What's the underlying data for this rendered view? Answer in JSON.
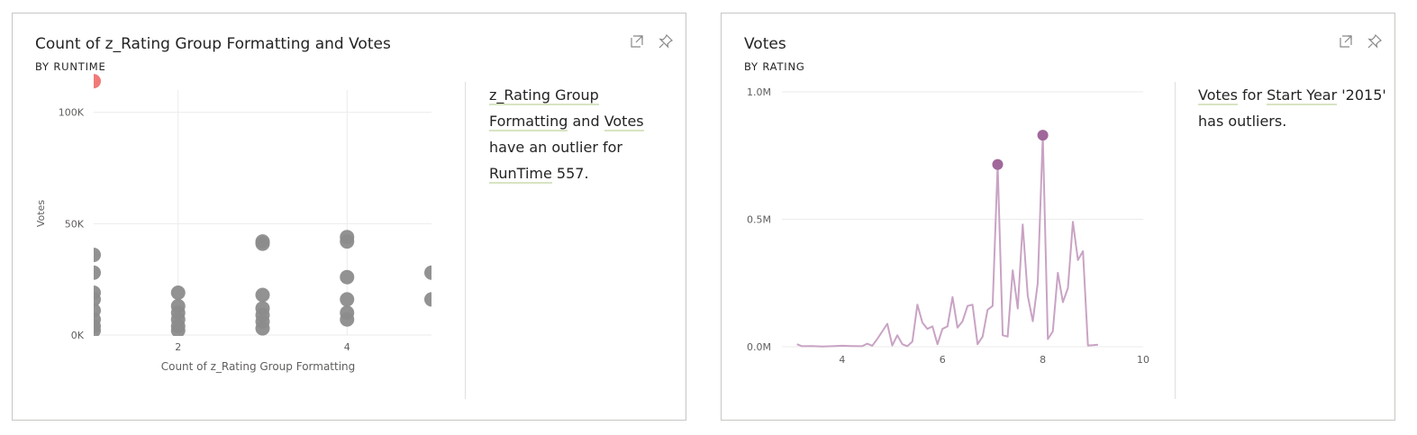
{
  "cards": [
    {
      "title": "Count of z_Rating Group Formatting and Votes",
      "subtitle": "BY RUNTIME",
      "narrative": {
        "t1": "z_Rating Group",
        "t2": "Formatting",
        "t3": " and ",
        "t4": "Votes",
        "t5": "have an outlier for",
        "t6": "RunTime",
        "t7": " 557."
      }
    },
    {
      "title": "Votes",
      "subtitle": "BY RATING",
      "narrative": {
        "t1": "Votes",
        "t2": " for ",
        "t3": "Start Year",
        "t4": " '2015'",
        "t5": "has outliers."
      }
    }
  ],
  "icons": {
    "expand": "expand-icon",
    "pin": "pin-icon"
  },
  "colors": {
    "scatter_point": "#8c8c8c",
    "outlier_point": "#f07a7a",
    "line": "#c9a3c4",
    "line_marker": "#a0679a",
    "grid": "#ebebeb",
    "underline": "#d7e4c2"
  },
  "chart_data": [
    {
      "type": "scatter",
      "title": "Count of z_Rating Group Formatting and Votes",
      "subtitle": "BY RUNTIME",
      "xlabel": "Count of z_Rating Group Formatting",
      "ylabel": "Votes",
      "xlim": [
        1,
        5
      ],
      "ylim": [
        0,
        110000
      ],
      "xticks": [
        "2",
        "4"
      ],
      "yticks": [
        "0K",
        "50K",
        "100K"
      ],
      "grid": true,
      "points": [
        {
          "x": 1,
          "y": 114000,
          "outlier": true
        },
        {
          "x": 1,
          "y": 36000
        },
        {
          "x": 1,
          "y": 28000
        },
        {
          "x": 1,
          "y": 19000
        },
        {
          "x": 1,
          "y": 16000
        },
        {
          "x": 1,
          "y": 11000
        },
        {
          "x": 1,
          "y": 7000
        },
        {
          "x": 1,
          "y": 4000
        },
        {
          "x": 1,
          "y": 2000
        },
        {
          "x": 2,
          "y": 19000
        },
        {
          "x": 2,
          "y": 13000
        },
        {
          "x": 2,
          "y": 10000
        },
        {
          "x": 2,
          "y": 7000
        },
        {
          "x": 2,
          "y": 4000
        },
        {
          "x": 2,
          "y": 2000
        },
        {
          "x": 3,
          "y": 42000
        },
        {
          "x": 3,
          "y": 41000
        },
        {
          "x": 3,
          "y": 18000
        },
        {
          "x": 3,
          "y": 12000
        },
        {
          "x": 3,
          "y": 9000
        },
        {
          "x": 3,
          "y": 6000
        },
        {
          "x": 3,
          "y": 3000
        },
        {
          "x": 4,
          "y": 44000
        },
        {
          "x": 4,
          "y": 42000
        },
        {
          "x": 4,
          "y": 26000
        },
        {
          "x": 4,
          "y": 16000
        },
        {
          "x": 4,
          "y": 10000
        },
        {
          "x": 4,
          "y": 7000
        },
        {
          "x": 5,
          "y": 28000
        },
        {
          "x": 5,
          "y": 16000
        }
      ]
    },
    {
      "type": "line",
      "title": "Votes",
      "subtitle": "BY RATING",
      "xlabel": "",
      "ylabel": "",
      "xlim": [
        2.8,
        10
      ],
      "ylim": [
        0,
        1000000
      ],
      "xticks": [
        "4",
        "6",
        "8",
        "10"
      ],
      "yticks": [
        "0.0M",
        "0.5M",
        "1.0M"
      ],
      "grid": true,
      "x": [
        3.1,
        3.2,
        3.4,
        3.6,
        3.8,
        4.0,
        4.2,
        4.4,
        4.5,
        4.6,
        4.7,
        4.8,
        4.9,
        5.0,
        5.1,
        5.2,
        5.3,
        5.4,
        5.5,
        5.6,
        5.7,
        5.8,
        5.9,
        6.0,
        6.1,
        6.2,
        6.3,
        6.4,
        6.5,
        6.6,
        6.7,
        6.8,
        6.9,
        7.0,
        7.1,
        7.2,
        7.3,
        7.4,
        7.5,
        7.6,
        7.7,
        7.8,
        7.9,
        8.0,
        8.1,
        8.2,
        8.3,
        8.4,
        8.5,
        8.6,
        8.7,
        8.8,
        8.9,
        9.0,
        9.1
      ],
      "values": [
        10000,
        2000,
        3000,
        1000,
        2000,
        4000,
        3000,
        2000,
        12000,
        4000,
        30000,
        60000,
        90000,
        5000,
        45000,
        10000,
        2000,
        20000,
        165000,
        95000,
        70000,
        80000,
        10000,
        70000,
        80000,
        195000,
        75000,
        100000,
        160000,
        165000,
        10000,
        40000,
        145000,
        160000,
        715000,
        45000,
        40000,
        300000,
        150000,
        480000,
        200000,
        100000,
        250000,
        830000,
        30000,
        60000,
        290000,
        175000,
        230000,
        490000,
        340000,
        375000,
        5000,
        6000,
        8000
      ],
      "markers": [
        {
          "x": 7.1,
          "y": 715000
        },
        {
          "x": 8.0,
          "y": 830000
        }
      ]
    }
  ]
}
